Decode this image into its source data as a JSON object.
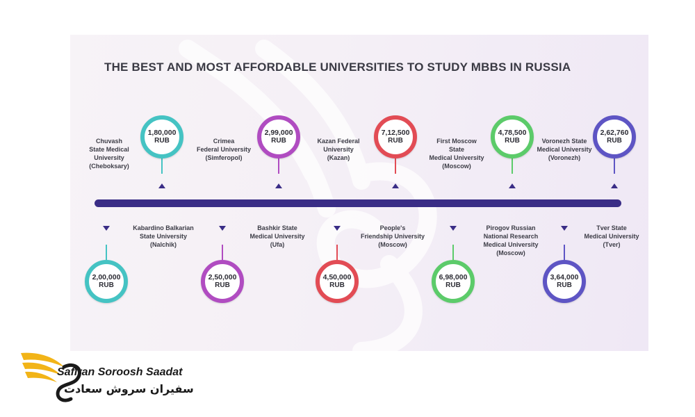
{
  "title": "THE BEST AND MOST AFFORDABLE UNIVERSITIES TO STUDY MBBS IN RUSSIA",
  "colors": {
    "timeline": "#3a2d86",
    "teal": "#45c3c3",
    "purple": "#b04cc1",
    "red": "#e24c55",
    "green": "#5ccb6a",
    "indigo": "#5e55c4"
  },
  "top": [
    {
      "university": "Chuvash\nState Medical\nUniversity\n(Cheboksary)",
      "amount": "1,80,000",
      "currency": "RUB",
      "color": "teal"
    },
    {
      "university": "Crimea\nFederal University\n(Simferopol)",
      "amount": "2,99,000",
      "currency": "RUB",
      "color": "purple"
    },
    {
      "university": "Kazan Federal\nUniversity\n(Kazan)",
      "amount": "7,12,500",
      "currency": "RUB",
      "color": "red"
    },
    {
      "university": "First Moscow\nState\nMedical University\n(Moscow)",
      "amount": "4,78,500",
      "currency": "RUB",
      "color": "green"
    },
    {
      "university": "Voronezh State\nMedical University\n(Voronezh)",
      "amount": "2,62,760",
      "currency": "RUB",
      "color": "indigo"
    }
  ],
  "bottom": [
    {
      "university": "Kabardino Balkarian\nState University\n(Nalchik)",
      "amount": "2,00,000",
      "currency": "RUB",
      "color": "teal"
    },
    {
      "university": "Bashkir State\nMedical University\n(Ufa)",
      "amount": "2,50,000",
      "currency": "RUB",
      "color": "purple"
    },
    {
      "university": "People's\nFriendship University\n(Moscow)",
      "amount": "4,50,000",
      "currency": "RUB",
      "color": "red"
    },
    {
      "university": "Pirogov Russian\nNational Research\nMedical University\n(Moscow)",
      "amount": "6,98,000",
      "currency": "RUB",
      "color": "green"
    },
    {
      "university": "Tver State\nMedical University\n(Tver)",
      "amount": "3,64,000",
      "currency": "RUB",
      "color": "indigo"
    }
  ],
  "brand": {
    "name_en": "Safiran Soroosh Saadat",
    "name_fa": "سفیران سروش سعادت"
  }
}
